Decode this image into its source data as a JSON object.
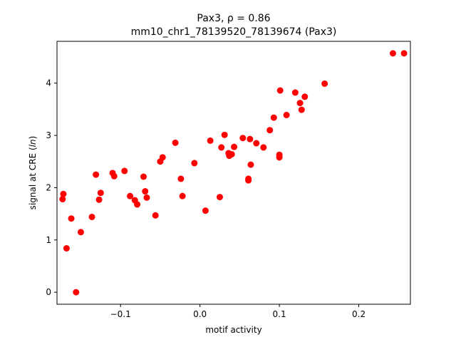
{
  "chart_data": {
    "type": "scatter",
    "title_line1": "Pax3, ρ = 0.86",
    "title_line2": "mm10_chr1_78139520_78139674 (Pax3)",
    "xlabel": "motif activity",
    "ylabel": "signal at CRE (ln)",
    "xlim": [
      -0.18,
      0.265
    ],
    "ylim": [
      -0.23,
      4.8
    ],
    "xticks": [
      -0.1,
      0.0,
      0.1,
      0.2
    ],
    "xtick_labels": [
      "−0.1",
      "0.0",
      "0.1",
      "0.2"
    ],
    "yticks": [
      0,
      1,
      2,
      3,
      4
    ],
    "ytick_labels": [
      "0",
      "1",
      "2",
      "3",
      "4"
    ],
    "grid": false,
    "marker_color": "#ff0000",
    "points": [
      {
        "x": -0.172,
        "y": 1.88
      },
      {
        "x": -0.173,
        "y": 1.78
      },
      {
        "x": -0.168,
        "y": 0.84
      },
      {
        "x": -0.162,
        "y": 1.41
      },
      {
        "x": -0.156,
        "y": 0.0
      },
      {
        "x": -0.15,
        "y": 1.15
      },
      {
        "x": -0.136,
        "y": 1.44
      },
      {
        "x": -0.131,
        "y": 2.25
      },
      {
        "x": -0.127,
        "y": 1.77
      },
      {
        "x": -0.125,
        "y": 1.9
      },
      {
        "x": -0.11,
        "y": 2.28
      },
      {
        "x": -0.108,
        "y": 2.22
      },
      {
        "x": -0.095,
        "y": 2.32
      },
      {
        "x": -0.088,
        "y": 1.84
      },
      {
        "x": -0.082,
        "y": 1.76
      },
      {
        "x": -0.079,
        "y": 1.68
      },
      {
        "x": -0.071,
        "y": 2.21
      },
      {
        "x": -0.069,
        "y": 1.93
      },
      {
        "x": -0.067,
        "y": 1.81
      },
      {
        "x": -0.056,
        "y": 1.47
      },
      {
        "x": -0.05,
        "y": 2.5
      },
      {
        "x": -0.047,
        "y": 2.58
      },
      {
        "x": -0.031,
        "y": 2.86
      },
      {
        "x": -0.024,
        "y": 2.17
      },
      {
        "x": -0.022,
        "y": 1.84
      },
      {
        "x": -0.007,
        "y": 2.47
      },
      {
        "x": 0.007,
        "y": 1.56
      },
      {
        "x": 0.013,
        "y": 2.9
      },
      {
        "x": 0.025,
        "y": 1.82
      },
      {
        "x": 0.027,
        "y": 2.77
      },
      {
        "x": 0.031,
        "y": 3.01
      },
      {
        "x": 0.036,
        "y": 2.66
      },
      {
        "x": 0.037,
        "y": 2.61
      },
      {
        "x": 0.04,
        "y": 2.64
      },
      {
        "x": 0.043,
        "y": 2.78
      },
      {
        "x": 0.054,
        "y": 2.95
      },
      {
        "x": 0.061,
        "y": 2.17
      },
      {
        "x": 0.061,
        "y": 2.14
      },
      {
        "x": 0.063,
        "y": 2.93
      },
      {
        "x": 0.064,
        "y": 2.44
      },
      {
        "x": 0.071,
        "y": 2.85
      },
      {
        "x": 0.08,
        "y": 2.77
      },
      {
        "x": 0.088,
        "y": 3.1
      },
      {
        "x": 0.093,
        "y": 3.34
      },
      {
        "x": 0.1,
        "y": 2.63
      },
      {
        "x": 0.1,
        "y": 2.58
      },
      {
        "x": 0.101,
        "y": 3.86
      },
      {
        "x": 0.109,
        "y": 3.39
      },
      {
        "x": 0.12,
        "y": 3.82
      },
      {
        "x": 0.126,
        "y": 3.62
      },
      {
        "x": 0.128,
        "y": 3.49
      },
      {
        "x": 0.132,
        "y": 3.74
      },
      {
        "x": 0.157,
        "y": 3.99
      },
      {
        "x": 0.243,
        "y": 4.57
      },
      {
        "x": 0.257,
        "y": 4.57
      }
    ]
  }
}
